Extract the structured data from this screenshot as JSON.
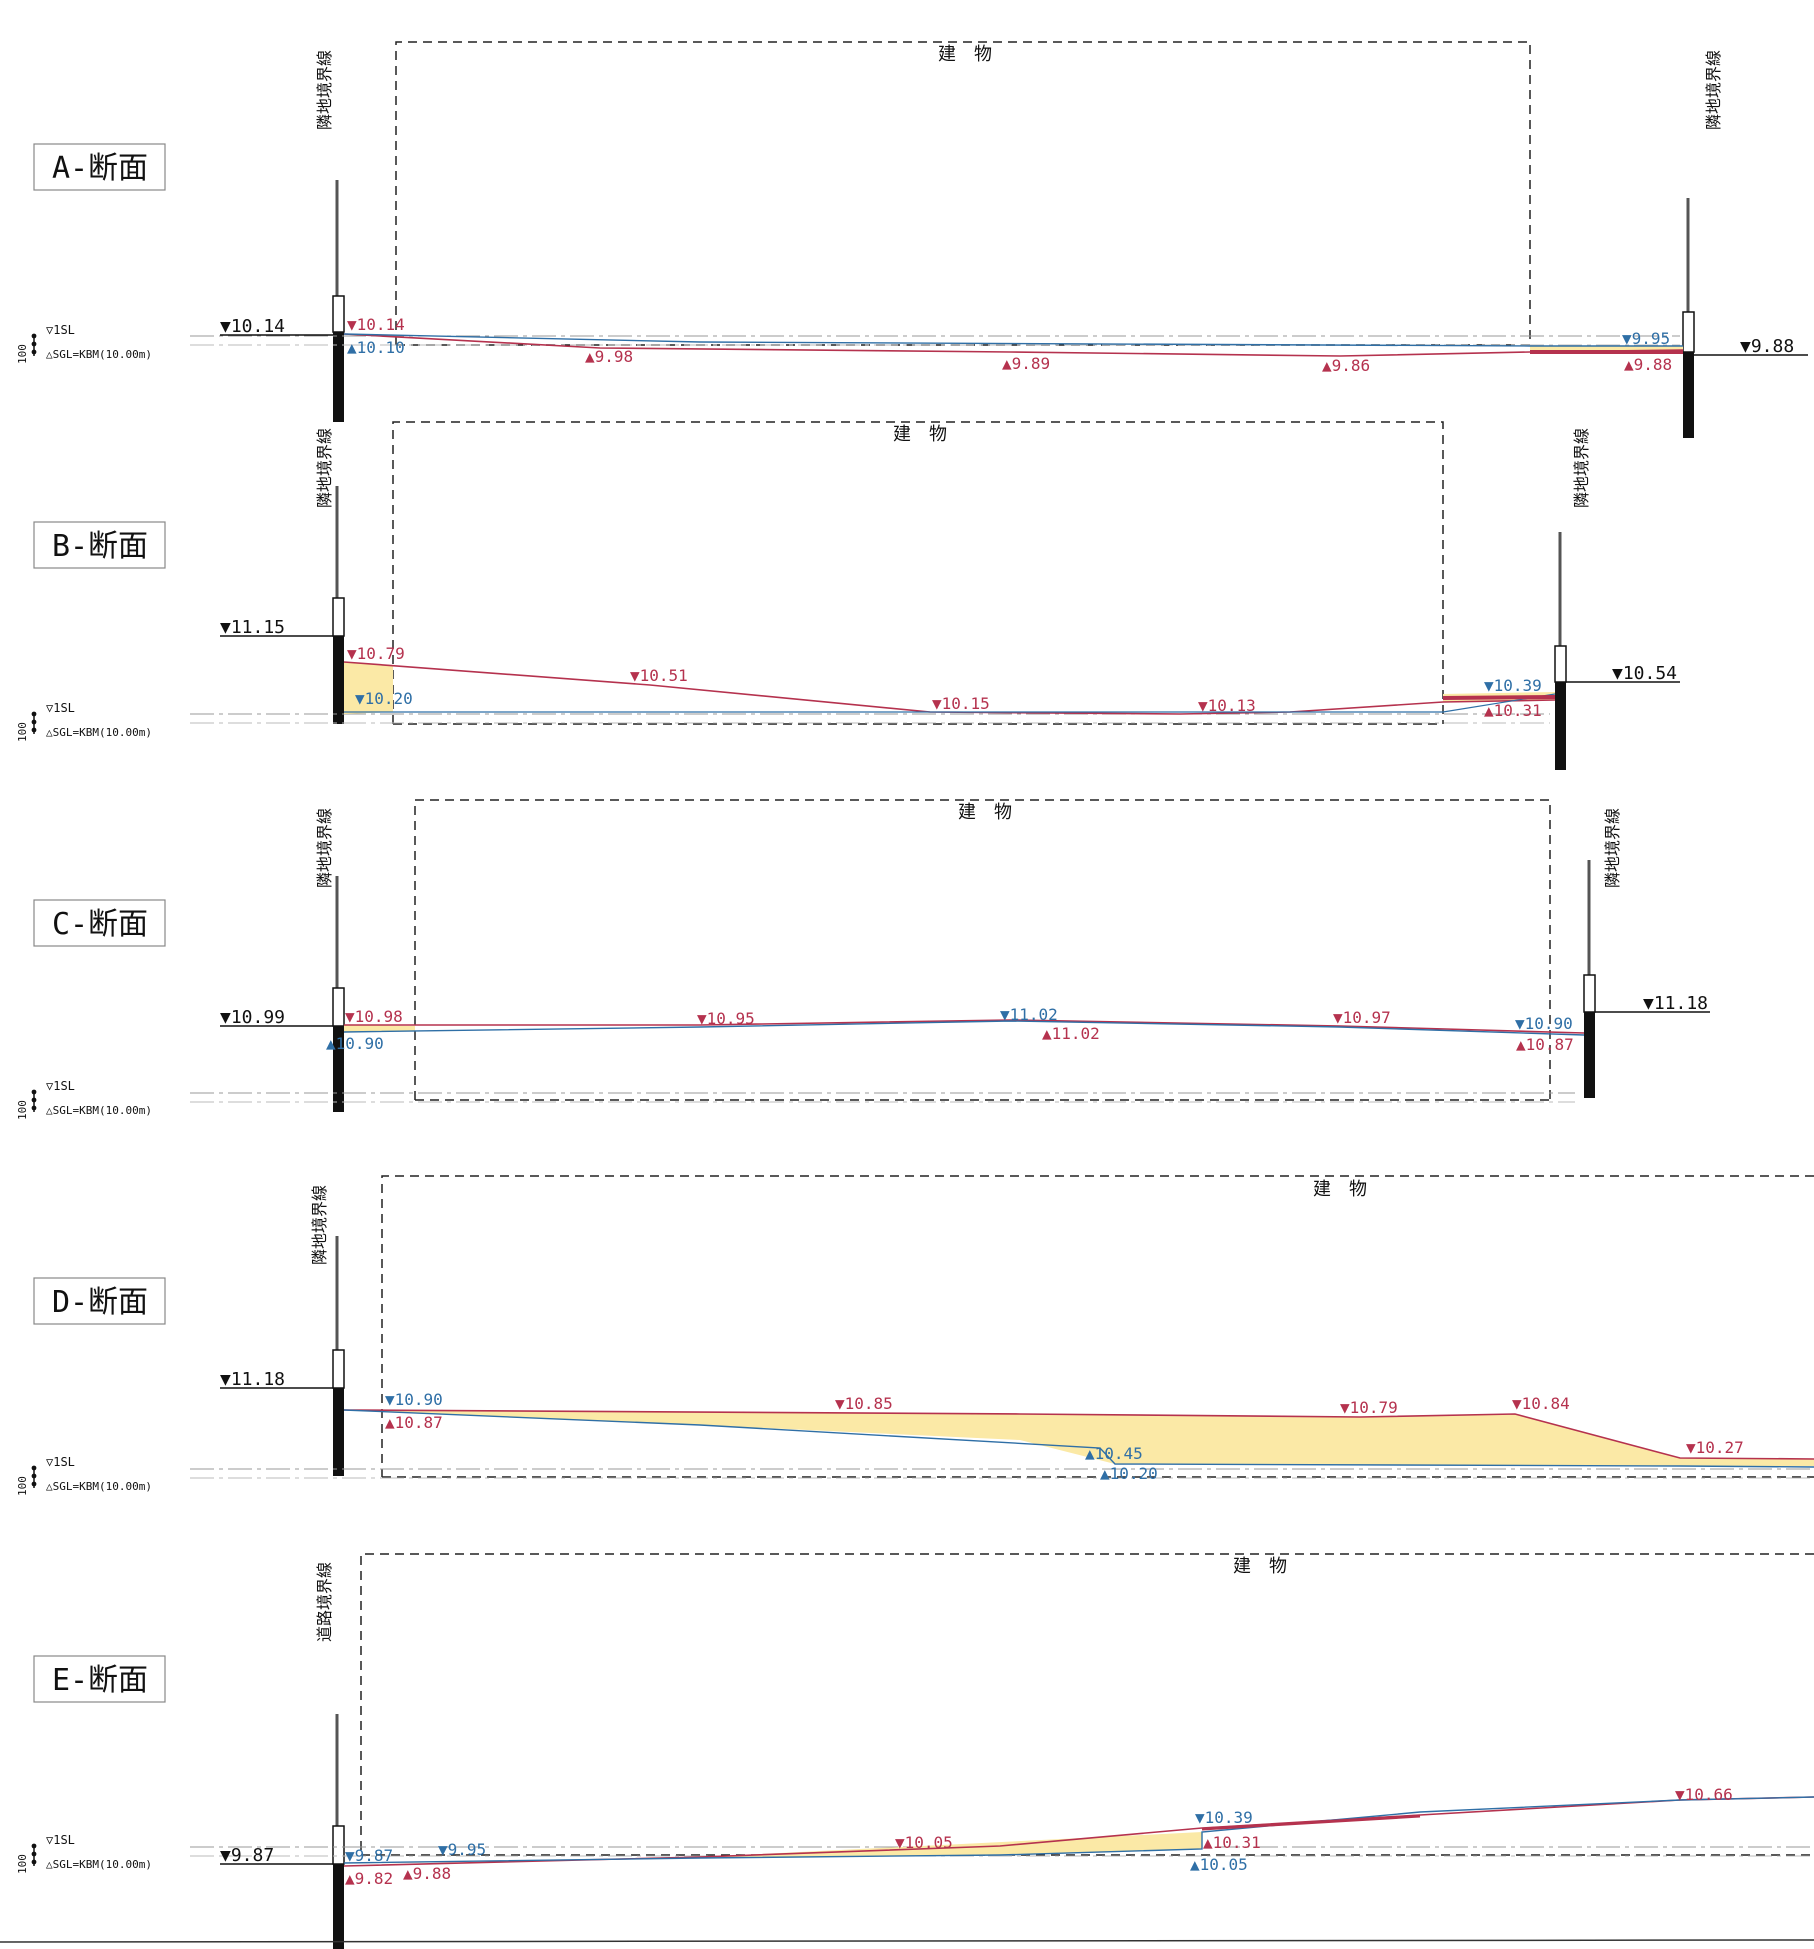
{
  "labels": {
    "isl": "▽1SL",
    "sgl": "△SGL=KBM(10.00m)",
    "scale": "100",
    "building": "建　物",
    "neighbor_boundary": "隣地境界線",
    "road_boundary": "道路境界線"
  },
  "sections": [
    {
      "id": "A",
      "name": "A-断面",
      "left_level": "▼10.14",
      "right_level": "▼9.88",
      "boundary_left": "隣地境界線",
      "boundary_right": "隣地境界線",
      "annotations": [
        {
          "text": "▼10.14",
          "color": "red"
        },
        {
          "text": "▲10.10",
          "color": "blue"
        },
        {
          "text": "▲9.98",
          "color": "red"
        },
        {
          "text": "▲9.89",
          "color": "red"
        },
        {
          "text": "▲9.86",
          "color": "red"
        },
        {
          "text": "▼9.95",
          "color": "blue"
        },
        {
          "text": "▲9.88",
          "color": "red"
        }
      ]
    },
    {
      "id": "B",
      "name": "B-断面",
      "left_level": "▼11.15",
      "right_level": "▼10.54",
      "boundary_left": "隣地境界線",
      "boundary_right": "隣地境界線",
      "annotations": [
        {
          "text": "▼10.79",
          "color": "red"
        },
        {
          "text": "▼10.20",
          "color": "blue"
        },
        {
          "text": "▼10.51",
          "color": "red"
        },
        {
          "text": "▼10.15",
          "color": "red"
        },
        {
          "text": "▼10.13",
          "color": "red"
        },
        {
          "text": "▼10.39",
          "color": "blue"
        },
        {
          "text": "▲10.31",
          "color": "red"
        }
      ]
    },
    {
      "id": "C",
      "name": "C-断面",
      "left_level": "▼10.99",
      "right_level": "▼11.18",
      "boundary_left": "隣地境界線",
      "boundary_right": "隣地境界線",
      "annotations": [
        {
          "text": "▼10.98",
          "color": "red"
        },
        {
          "text": "▲10.90",
          "color": "blue"
        },
        {
          "text": "▼10.95",
          "color": "red"
        },
        {
          "text": "▼11.02",
          "color": "blue"
        },
        {
          "text": "▲11.02",
          "color": "red"
        },
        {
          "text": "▼10.97",
          "color": "red"
        },
        {
          "text": "▼10.90",
          "color": "blue"
        },
        {
          "text": "▲10.87",
          "color": "red"
        }
      ]
    },
    {
      "id": "D",
      "name": "D-断面",
      "left_level": "▼11.18",
      "boundary_left": "隣地境界線",
      "annotations": [
        {
          "text": "▼10.90",
          "color": "blue"
        },
        {
          "text": "▲10.87",
          "color": "red"
        },
        {
          "text": "▼10.85",
          "color": "red"
        },
        {
          "text": "▲10.45",
          "color": "blue"
        },
        {
          "text": "▲10.20",
          "color": "blue"
        },
        {
          "text": "▼10.79",
          "color": "red"
        },
        {
          "text": "▼10.84",
          "color": "red"
        },
        {
          "text": "▼10.27",
          "color": "red"
        }
      ]
    },
    {
      "id": "E",
      "name": "E-断面",
      "left_level": "▼9.87",
      "boundary_left": "道路境界線",
      "annotations": [
        {
          "text": "▼9.87",
          "color": "blue"
        },
        {
          "text": "▲9.82",
          "color": "red"
        },
        {
          "text": "▼9.95",
          "color": "blue"
        },
        {
          "text": "▲9.88",
          "color": "red"
        },
        {
          "text": "▼10.05",
          "color": "red"
        },
        {
          "text": "▼10.39",
          "color": "blue"
        },
        {
          "text": "▲10.31",
          "color": "red"
        },
        {
          "text": "▲10.05",
          "color": "blue"
        },
        {
          "text": "▼10.66",
          "color": "red"
        }
      ]
    }
  ],
  "colors": {
    "red": "#b5324e",
    "blue": "#2f6fa6",
    "fill": "#fbe9a6",
    "ink": "#111111"
  }
}
